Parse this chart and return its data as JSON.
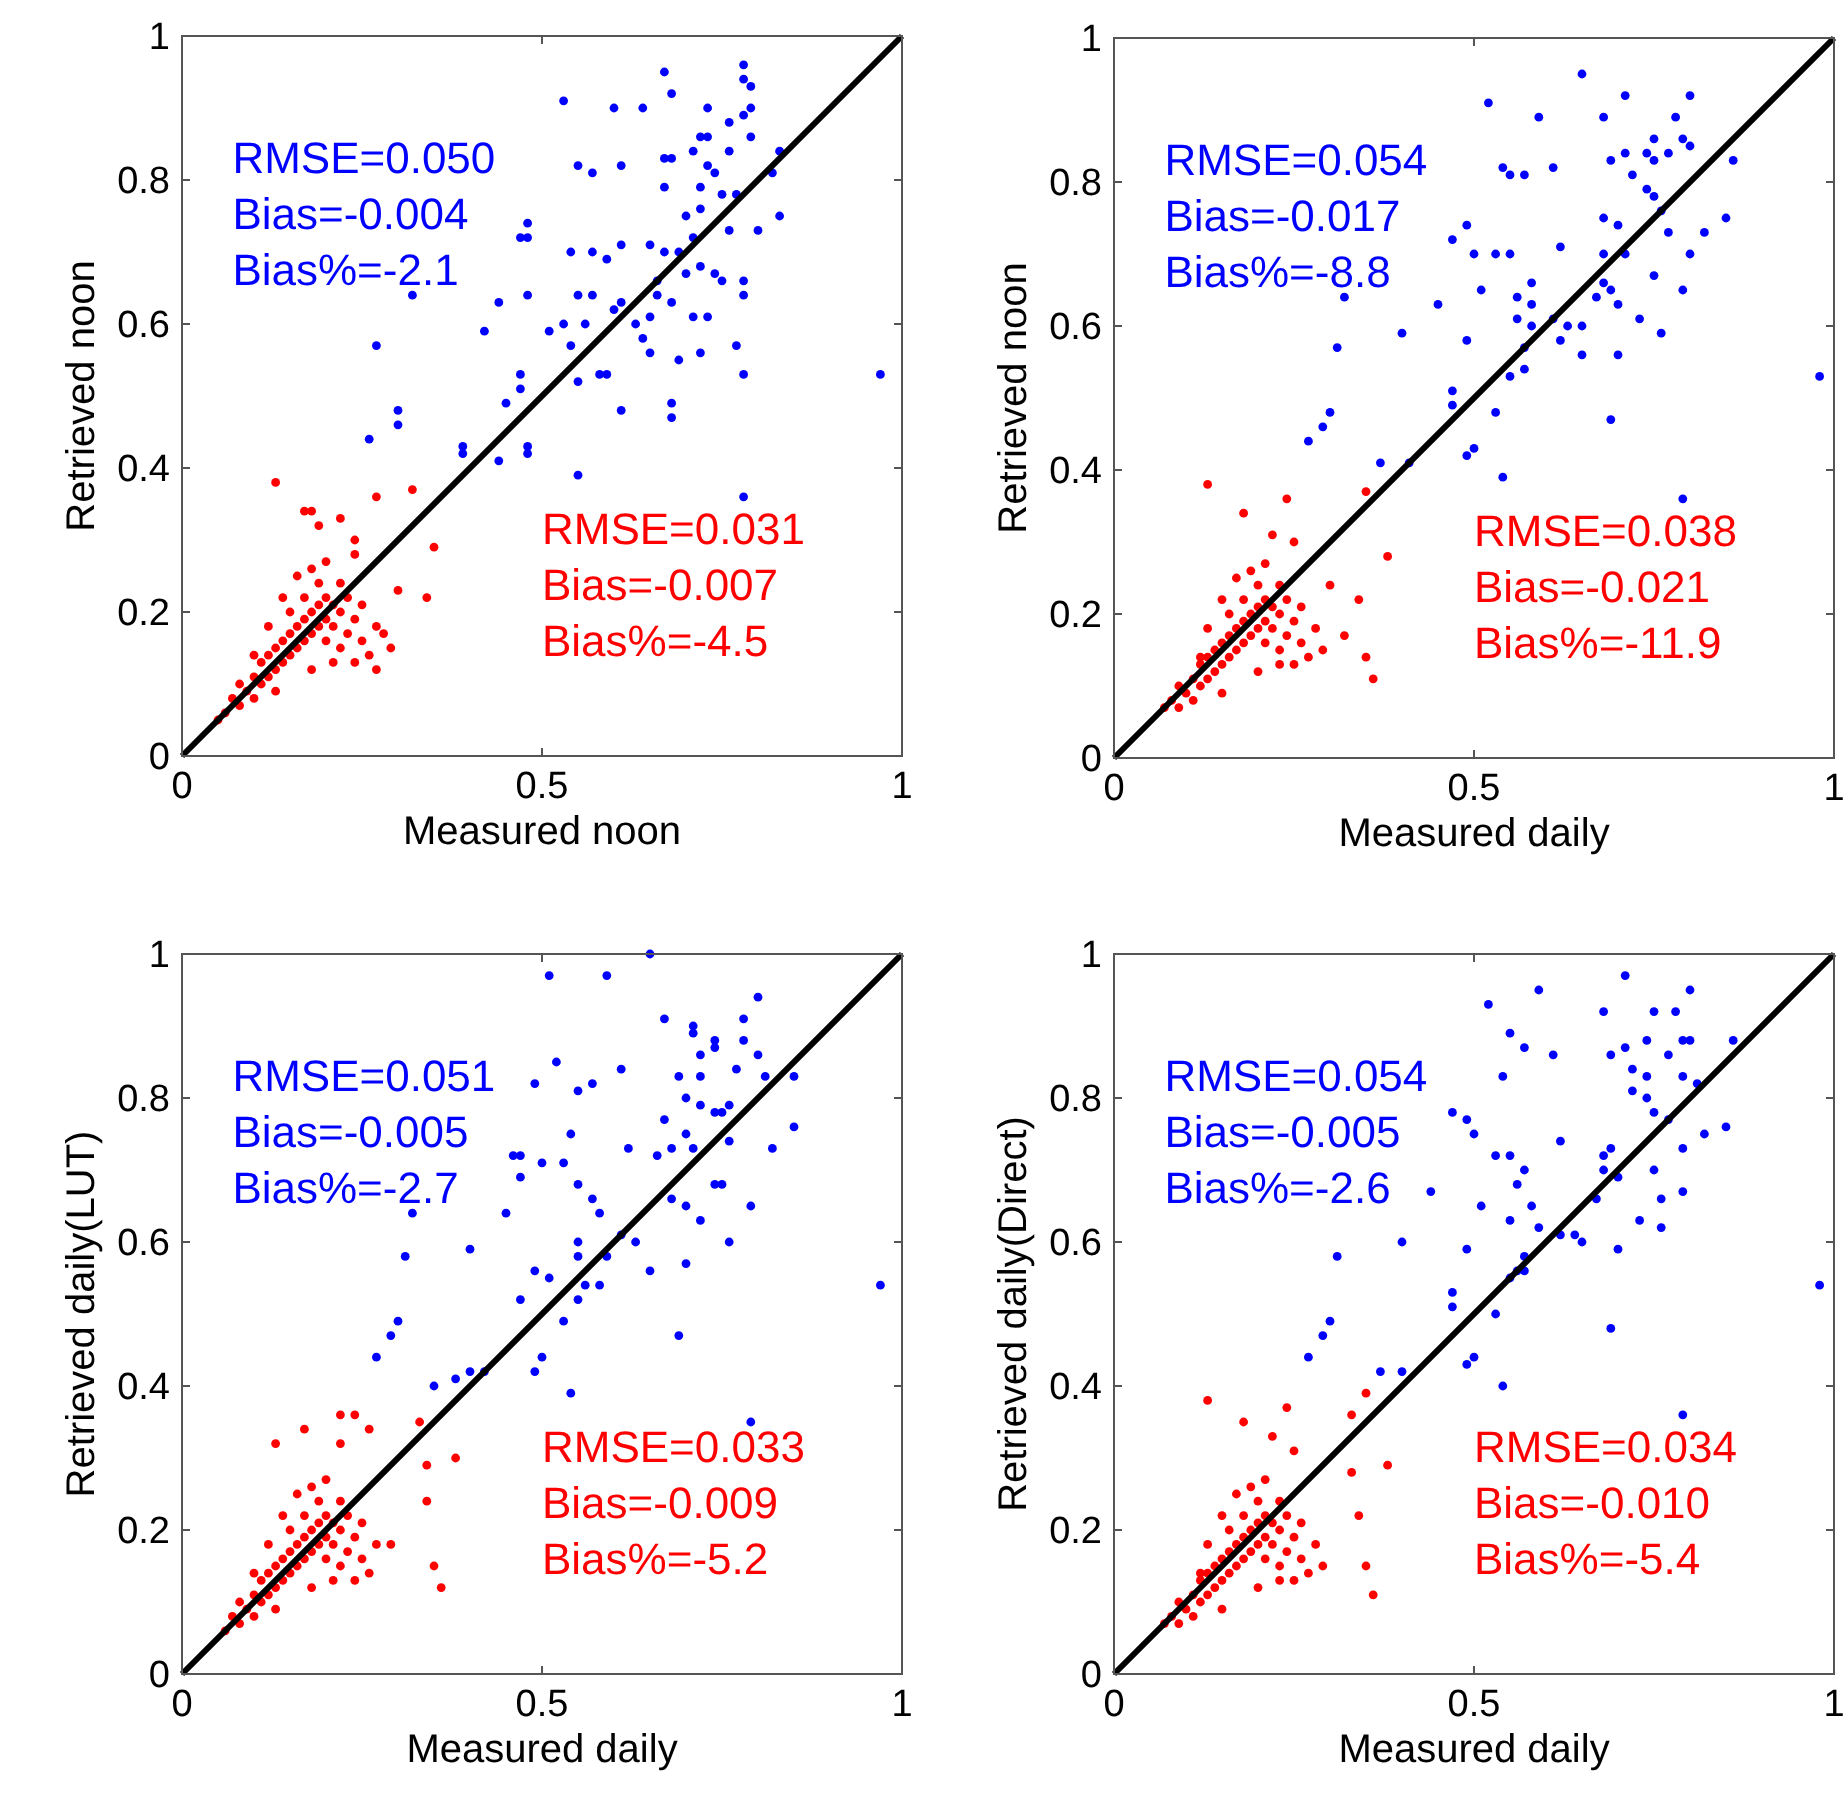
{
  "chart_data": [
    {
      "type": "scatter",
      "xlabel": "Measured noon",
      "ylabel": "Retrieved noon",
      "xlim": [
        0,
        1
      ],
      "ylim": [
        0,
        1
      ],
      "xticks": [
        0,
        0.5,
        1
      ],
      "yticks": [
        0,
        0.2,
        0.4,
        0.6,
        0.8,
        1
      ],
      "annotations": [
        "RMSE=0.050",
        "Bias=-0.004",
        "Bias%=-2.1",
        "RMSE=0.031",
        "Bias=-0.007",
        "Bias%=-4.5"
      ],
      "series": [
        {
          "color": "#0000ff",
          "marker": "circle",
          "x": [
            0.53,
            0.67,
            0.68,
            0.6,
            0.64,
            0.73,
            0.78,
            0.78,
            0.79,
            0.79,
            0.76,
            0.78,
            0.79,
            0.73,
            0.72,
            0.76,
            0.83,
            0.82,
            0.55,
            0.57,
            0.61,
            0.67,
            0.68,
            0.71,
            0.73,
            0.74,
            0.67,
            0.72,
            0.75,
            0.77,
            0.7,
            0.72,
            0.83,
            0.8,
            0.76,
            0.71,
            0.48,
            0.47,
            0.48,
            0.54,
            0.57,
            0.61,
            0.65,
            0.67,
            0.69,
            0.59,
            0.7,
            0.72,
            0.74,
            0.78,
            0.66,
            0.75,
            0.78,
            0.32,
            0.48,
            0.55,
            0.57,
            0.66,
            0.68,
            0.61,
            0.44,
            0.53,
            0.56,
            0.6,
            0.63,
            0.65,
            0.71,
            0.73,
            0.42,
            0.51,
            0.54,
            0.64,
            0.65,
            0.69,
            0.72,
            0.77,
            0.27,
            0.55,
            0.58,
            0.59,
            0.78,
            0.97,
            0.47,
            0.47,
            0.45,
            0.68,
            0.68,
            0.61,
            0.3,
            0.3,
            0.26,
            0.39,
            0.39,
            0.44,
            0.48,
            0.48,
            0.55,
            0.78
          ],
          "values": [
            0.91,
            0.95,
            0.92,
            0.9,
            0.9,
            0.9,
            0.96,
            0.94,
            0.93,
            0.9,
            0.88,
            0.89,
            0.86,
            0.86,
            0.86,
            0.84,
            0.84,
            0.81,
            0.82,
            0.81,
            0.82,
            0.83,
            0.83,
            0.84,
            0.82,
            0.81,
            0.79,
            0.79,
            0.78,
            0.78,
            0.75,
            0.76,
            0.75,
            0.73,
            0.73,
            0.72,
            0.74,
            0.72,
            0.72,
            0.7,
            0.7,
            0.71,
            0.71,
            0.7,
            0.7,
            0.69,
            0.67,
            0.68,
            0.67,
            0.66,
            0.66,
            0.66,
            0.64,
            0.64,
            0.64,
            0.64,
            0.64,
            0.64,
            0.63,
            0.63,
            0.63,
            0.6,
            0.6,
            0.62,
            0.6,
            0.61,
            0.61,
            0.61,
            0.59,
            0.59,
            0.57,
            0.58,
            0.56,
            0.55,
            0.56,
            0.57,
            0.57,
            0.52,
            0.53,
            0.53,
            0.53,
            0.53,
            0.53,
            0.51,
            0.49,
            0.49,
            0.47,
            0.48,
            0.48,
            0.46,
            0.44,
            0.43,
            0.42,
            0.41,
            0.43,
            0.42,
            0.39,
            0.36
          ]
        },
        {
          "color": "#ff0000",
          "marker": "circle",
          "x": [
            0.13,
            0.17,
            0.18,
            0.22,
            0.27,
            0.32,
            0.19,
            0.24,
            0.24,
            0.35,
            0.3,
            0.34,
            0.28,
            0.29,
            0.27,
            0.05,
            0.06,
            0.07,
            0.08,
            0.08,
            0.09,
            0.1,
            0.1,
            0.11,
            0.11,
            0.12,
            0.12,
            0.13,
            0.13,
            0.14,
            0.14,
            0.15,
            0.15,
            0.15,
            0.16,
            0.16,
            0.17,
            0.17,
            0.17,
            0.18,
            0.18,
            0.19,
            0.19,
            0.19,
            0.2,
            0.2,
            0.2,
            0.21,
            0.21,
            0.22,
            0.22,
            0.22,
            0.23,
            0.23,
            0.24,
            0.24,
            0.25,
            0.25,
            0.26,
            0.27,
            0.12,
            0.14,
            0.1,
            0.16,
            0.18,
            0.2,
            0.13,
            0.18,
            0.21
          ],
          "values": [
            0.38,
            0.34,
            0.34,
            0.33,
            0.36,
            0.37,
            0.32,
            0.3,
            0.28,
            0.29,
            0.23,
            0.22,
            0.17,
            0.15,
            0.12,
            0.05,
            0.06,
            0.08,
            0.07,
            0.1,
            0.09,
            0.08,
            0.11,
            0.1,
            0.13,
            0.11,
            0.14,
            0.12,
            0.15,
            0.13,
            0.16,
            0.14,
            0.17,
            0.2,
            0.15,
            0.18,
            0.16,
            0.19,
            0.22,
            0.17,
            0.2,
            0.18,
            0.21,
            0.24,
            0.16,
            0.19,
            0.22,
            0.18,
            0.21,
            0.15,
            0.2,
            0.24,
            0.17,
            0.22,
            0.19,
            0.13,
            0.16,
            0.21,
            0.14,
            0.18,
            0.18,
            0.22,
            0.14,
            0.25,
            0.26,
            0.27,
            0.09,
            0.12,
            0.13
          ]
        },
        {
          "type": "line",
          "marker": "none",
          "color": "#000000",
          "x": [
            0,
            1
          ],
          "values": [
            0,
            1
          ]
        }
      ]
    },
    {
      "type": "scatter",
      "xlabel": "Measured daily",
      "ylabel": "Retrieved noon",
      "xlim": [
        0,
        1
      ],
      "ylim": [
        0,
        1
      ],
      "xticks": [
        0,
        0.5,
        1
      ],
      "yticks": [
        0,
        0.2,
        0.4,
        0.6,
        0.8,
        1
      ],
      "annotations": [
        "RMSE=0.054",
        "Bias=-0.017",
        "Bias%=-8.8",
        "RMSE=0.038",
        "Bias=-0.021",
        "Bias%=-11.9"
      ],
      "series": [
        {
          "color": "#0000ff",
          "marker": "circle",
          "x": [
            0.65,
            0.52,
            0.59,
            0.71,
            0.8,
            0.68,
            0.78,
            0.75,
            0.74,
            0.8,
            0.79,
            0.86,
            0.54,
            0.55,
            0.57,
            0.61,
            0.69,
            0.71,
            0.72,
            0.75,
            0.77,
            0.74,
            0.75,
            0.76,
            0.85,
            0.68,
            0.7,
            0.49,
            0.47,
            0.53,
            0.55,
            0.62,
            0.68,
            0.71,
            0.77,
            0.82,
            0.8,
            0.5,
            0.75,
            0.68,
            0.58,
            0.69,
            0.79,
            0.51,
            0.32,
            0.56,
            0.58,
            0.67,
            0.7,
            0.45,
            0.56,
            0.58,
            0.61,
            0.63,
            0.65,
            0.73,
            0.4,
            0.49,
            0.57,
            0.62,
            0.65,
            0.7,
            0.76,
            0.31,
            0.55,
            0.57,
            0.98,
            0.47,
            0.47,
            0.53,
            0.69,
            0.3,
            0.29,
            0.27,
            0.37,
            0.41,
            0.49,
            0.5,
            0.54,
            0.79
          ],
          "values": [
            0.95,
            0.91,
            0.89,
            0.92,
            0.92,
            0.89,
            0.89,
            0.86,
            0.84,
            0.85,
            0.86,
            0.83,
            0.82,
            0.81,
            0.81,
            0.82,
            0.83,
            0.84,
            0.81,
            0.83,
            0.84,
            0.79,
            0.78,
            0.76,
            0.75,
            0.75,
            0.74,
            0.74,
            0.72,
            0.7,
            0.7,
            0.71,
            0.7,
            0.7,
            0.73,
            0.73,
            0.7,
            0.7,
            0.67,
            0.66,
            0.66,
            0.65,
            0.65,
            0.65,
            0.64,
            0.64,
            0.63,
            0.64,
            0.63,
            0.63,
            0.61,
            0.6,
            0.61,
            0.6,
            0.6,
            0.61,
            0.59,
            0.58,
            0.57,
            0.58,
            0.56,
            0.56,
            0.59,
            0.57,
            0.53,
            0.54,
            0.53,
            0.51,
            0.49,
            0.48,
            0.47,
            0.48,
            0.46,
            0.44,
            0.41,
            0.41,
            0.42,
            0.43,
            0.39,
            0.36
          ]
        },
        {
          "color": "#ff0000",
          "marker": "circle",
          "x": [
            0.13,
            0.18,
            0.24,
            0.22,
            0.25,
            0.35,
            0.38,
            0.3,
            0.34,
            0.32,
            0.35,
            0.36,
            0.07,
            0.08,
            0.09,
            0.09,
            0.1,
            0.11,
            0.11,
            0.12,
            0.12,
            0.13,
            0.13,
            0.14,
            0.14,
            0.15,
            0.15,
            0.16,
            0.16,
            0.16,
            0.17,
            0.17,
            0.18,
            0.18,
            0.18,
            0.19,
            0.19,
            0.2,
            0.2,
            0.2,
            0.21,
            0.21,
            0.21,
            0.22,
            0.22,
            0.23,
            0.23,
            0.23,
            0.24,
            0.24,
            0.25,
            0.25,
            0.26,
            0.26,
            0.27,
            0.28,
            0.29,
            0.13,
            0.15,
            0.12,
            0.17,
            0.19,
            0.21,
            0.15,
            0.2,
            0.23
          ],
          "values": [
            0.38,
            0.34,
            0.36,
            0.31,
            0.3,
            0.37,
            0.28,
            0.24,
            0.22,
            0.17,
            0.14,
            0.11,
            0.07,
            0.08,
            0.07,
            0.1,
            0.09,
            0.08,
            0.11,
            0.1,
            0.13,
            0.11,
            0.14,
            0.12,
            0.15,
            0.13,
            0.16,
            0.14,
            0.17,
            0.2,
            0.15,
            0.18,
            0.16,
            0.19,
            0.22,
            0.17,
            0.2,
            0.18,
            0.21,
            0.24,
            0.16,
            0.19,
            0.22,
            0.18,
            0.21,
            0.15,
            0.2,
            0.24,
            0.17,
            0.22,
            0.19,
            0.13,
            0.16,
            0.21,
            0.14,
            0.18,
            0.15,
            0.18,
            0.22,
            0.14,
            0.25,
            0.26,
            0.27,
            0.09,
            0.12,
            0.13
          ]
        },
        {
          "type": "line",
          "marker": "none",
          "color": "#000000",
          "x": [
            0,
            1
          ],
          "values": [
            0,
            1
          ]
        }
      ]
    },
    {
      "type": "scatter",
      "xlabel": "Measured daily",
      "ylabel": "Retrieved daily(LUT)",
      "xlim": [
        0,
        1
      ],
      "ylim": [
        0,
        1
      ],
      "xticks": [
        0,
        0.5,
        1
      ],
      "yticks": [
        0,
        0.2,
        0.4,
        0.6,
        0.8,
        1
      ],
      "annotations": [
        "RMSE=0.051",
        "Bias=-0.005",
        "Bias%=-2.7",
        "RMSE=0.033",
        "Bias=-0.009",
        "Bias%=-5.2"
      ],
      "series": [
        {
          "color": "#0000ff",
          "marker": "circle",
          "x": [
            0.65,
            0.51,
            0.59,
            0.8,
            0.78,
            0.67,
            0.71,
            0.71,
            0.74,
            0.78,
            0.72,
            0.74,
            0.77,
            0.8,
            0.61,
            0.52,
            0.49,
            0.55,
            0.57,
            0.69,
            0.72,
            0.81,
            0.85,
            0.7,
            0.72,
            0.74,
            0.76,
            0.75,
            0.54,
            0.67,
            0.7,
            0.85,
            0.46,
            0.47,
            0.5,
            0.53,
            0.62,
            0.66,
            0.68,
            0.71,
            0.76,
            0.82,
            0.47,
            0.55,
            0.57,
            0.68,
            0.7,
            0.74,
            0.75,
            0.79,
            0.45,
            0.32,
            0.58,
            0.72,
            0.76,
            0.4,
            0.55,
            0.61,
            0.63,
            0.55,
            0.59,
            0.65,
            0.7,
            0.31,
            0.49,
            0.51,
            0.56,
            0.58,
            0.97,
            0.47,
            0.55,
            0.53,
            0.3,
            0.29,
            0.69,
            0.27,
            0.5,
            0.49,
            0.35,
            0.38,
            0.4,
            0.42,
            0.54,
            0.79
          ],
          "values": [
            1.0,
            0.97,
            0.97,
            0.94,
            0.91,
            0.91,
            0.9,
            0.89,
            0.88,
            0.88,
            0.86,
            0.87,
            0.84,
            0.86,
            0.84,
            0.85,
            0.82,
            0.81,
            0.82,
            0.83,
            0.83,
            0.83,
            0.83,
            0.8,
            0.79,
            0.78,
            0.79,
            0.78,
            0.75,
            0.77,
            0.75,
            0.76,
            0.72,
            0.72,
            0.71,
            0.71,
            0.73,
            0.72,
            0.73,
            0.73,
            0.74,
            0.73,
            0.69,
            0.68,
            0.66,
            0.66,
            0.65,
            0.68,
            0.68,
            0.65,
            0.64,
            0.64,
            0.64,
            0.63,
            0.6,
            0.59,
            0.6,
            0.61,
            0.6,
            0.58,
            0.58,
            0.56,
            0.57,
            0.58,
            0.56,
            0.55,
            0.54,
            0.54,
            0.54,
            0.52,
            0.52,
            0.49,
            0.49,
            0.47,
            0.47,
            0.44,
            0.44,
            0.42,
            0.4,
            0.41,
            0.42,
            0.42,
            0.39,
            0.35
          ]
        },
        {
          "color": "#ff0000",
          "marker": "circle",
          "x": [
            0.13,
            0.17,
            0.22,
            0.24,
            0.26,
            0.33,
            0.22,
            0.38,
            0.34,
            0.34,
            0.29,
            0.35,
            0.36,
            0.06,
            0.07,
            0.08,
            0.08,
            0.09,
            0.1,
            0.1,
            0.11,
            0.11,
            0.12,
            0.12,
            0.13,
            0.13,
            0.14,
            0.14,
            0.15,
            0.15,
            0.15,
            0.16,
            0.16,
            0.17,
            0.17,
            0.17,
            0.18,
            0.18,
            0.19,
            0.19,
            0.19,
            0.2,
            0.2,
            0.2,
            0.21,
            0.21,
            0.22,
            0.22,
            0.22,
            0.23,
            0.23,
            0.24,
            0.24,
            0.25,
            0.25,
            0.26,
            0.27,
            0.12,
            0.14,
            0.1,
            0.16,
            0.18,
            0.2,
            0.13,
            0.18,
            0.21
          ],
          "values": [
            0.32,
            0.34,
            0.36,
            0.36,
            0.34,
            0.35,
            0.32,
            0.3,
            0.29,
            0.24,
            0.18,
            0.15,
            0.12,
            0.06,
            0.08,
            0.07,
            0.1,
            0.09,
            0.08,
            0.11,
            0.1,
            0.13,
            0.11,
            0.14,
            0.12,
            0.15,
            0.13,
            0.16,
            0.14,
            0.17,
            0.2,
            0.15,
            0.18,
            0.16,
            0.19,
            0.22,
            0.17,
            0.2,
            0.18,
            0.21,
            0.24,
            0.16,
            0.19,
            0.22,
            0.18,
            0.21,
            0.15,
            0.2,
            0.24,
            0.17,
            0.22,
            0.19,
            0.13,
            0.16,
            0.21,
            0.14,
            0.18,
            0.18,
            0.22,
            0.14,
            0.25,
            0.26,
            0.27,
            0.09,
            0.12,
            0.13
          ]
        },
        {
          "type": "line",
          "marker": "none",
          "color": "#000000",
          "x": [
            0,
            1
          ],
          "values": [
            0,
            1
          ]
        }
      ]
    },
    {
      "type": "scatter",
      "xlabel": "Measured daily",
      "ylabel": "Retrieved daily(Direct)",
      "xlim": [
        0,
        1
      ],
      "ylim": [
        0,
        1
      ],
      "xticks": [
        0,
        0.5,
        1
      ],
      "yticks": [
        0,
        0.2,
        0.4,
        0.6,
        0.8,
        1
      ],
      "annotations": [
        "RMSE=0.054",
        "Bias=-0.005",
        "Bias%=-2.6",
        "RMSE=0.034",
        "Bias=-0.010",
        "Bias%=-5.4"
      ],
      "series": [
        {
          "color": "#0000ff",
          "marker": "circle",
          "x": [
            0.71,
            0.52,
            0.59,
            0.8,
            0.68,
            0.75,
            0.78,
            0.55,
            0.57,
            0.61,
            0.69,
            0.71,
            0.74,
            0.77,
            0.79,
            0.8,
            0.86,
            0.54,
            0.72,
            0.74,
            0.79,
            0.81,
            0.47,
            0.49,
            0.5,
            0.53,
            0.55,
            0.62,
            0.68,
            0.69,
            0.72,
            0.74,
            0.75,
            0.77,
            0.82,
            0.85,
            0.79,
            0.68,
            0.75,
            0.57,
            0.7,
            0.79,
            0.76,
            0.44,
            0.56,
            0.51,
            0.58,
            0.67,
            0.55,
            0.59,
            0.62,
            0.64,
            0.65,
            0.73,
            0.76,
            0.4,
            0.49,
            0.57,
            0.7,
            0.31,
            0.56,
            0.57,
            0.98,
            0.55,
            0.47,
            0.47,
            0.53,
            0.69,
            0.3,
            0.29,
            0.27,
            0.37,
            0.4,
            0.49,
            0.5,
            0.54,
            0.79
          ],
          "values": [
            0.97,
            0.93,
            0.95,
            0.95,
            0.92,
            0.92,
            0.92,
            0.89,
            0.87,
            0.86,
            0.86,
            0.87,
            0.88,
            0.86,
            0.88,
            0.88,
            0.88,
            0.83,
            0.84,
            0.83,
            0.83,
            0.82,
            0.78,
            0.77,
            0.75,
            0.72,
            0.72,
            0.74,
            0.72,
            0.73,
            0.81,
            0.8,
            0.78,
            0.77,
            0.75,
            0.76,
            0.73,
            0.7,
            0.7,
            0.7,
            0.69,
            0.67,
            0.66,
            0.67,
            0.68,
            0.65,
            0.65,
            0.66,
            0.63,
            0.62,
            0.61,
            0.61,
            0.6,
            0.63,
            0.62,
            0.6,
            0.59,
            0.58,
            0.59,
            0.58,
            0.56,
            0.56,
            0.54,
            0.55,
            0.53,
            0.51,
            0.5,
            0.48,
            0.49,
            0.47,
            0.44,
            0.42,
            0.42,
            0.43,
            0.44,
            0.4,
            0.36
          ]
        },
        {
          "color": "#ff0000",
          "marker": "circle",
          "x": [
            0.13,
            0.18,
            0.24,
            0.22,
            0.25,
            0.33,
            0.35,
            0.38,
            0.33,
            0.34,
            0.35,
            0.36,
            0.07,
            0.08,
            0.09,
            0.09,
            0.1,
            0.11,
            0.11,
            0.12,
            0.12,
            0.13,
            0.13,
            0.14,
            0.14,
            0.15,
            0.15,
            0.16,
            0.16,
            0.16,
            0.17,
            0.17,
            0.18,
            0.18,
            0.18,
            0.19,
            0.19,
            0.2,
            0.2,
            0.2,
            0.21,
            0.21,
            0.21,
            0.22,
            0.22,
            0.23,
            0.23,
            0.23,
            0.24,
            0.24,
            0.25,
            0.25,
            0.26,
            0.26,
            0.27,
            0.28,
            0.29,
            0.13,
            0.15,
            0.12,
            0.17,
            0.19,
            0.21,
            0.15,
            0.2,
            0.23
          ],
          "values": [
            0.38,
            0.35,
            0.37,
            0.33,
            0.31,
            0.36,
            0.39,
            0.29,
            0.28,
            0.22,
            0.15,
            0.11,
            0.07,
            0.08,
            0.07,
            0.1,
            0.09,
            0.08,
            0.11,
            0.1,
            0.13,
            0.11,
            0.14,
            0.12,
            0.15,
            0.13,
            0.16,
            0.14,
            0.17,
            0.2,
            0.15,
            0.18,
            0.16,
            0.19,
            0.22,
            0.17,
            0.2,
            0.18,
            0.21,
            0.24,
            0.16,
            0.19,
            0.22,
            0.18,
            0.21,
            0.15,
            0.2,
            0.24,
            0.17,
            0.22,
            0.19,
            0.13,
            0.16,
            0.21,
            0.14,
            0.18,
            0.15,
            0.18,
            0.22,
            0.14,
            0.25,
            0.26,
            0.27,
            0.09,
            0.12,
            0.13
          ]
        },
        {
          "type": "line",
          "marker": "none",
          "color": "#000000",
          "x": [
            0,
            1
          ],
          "values": [
            0,
            1
          ]
        }
      ]
    }
  ]
}
